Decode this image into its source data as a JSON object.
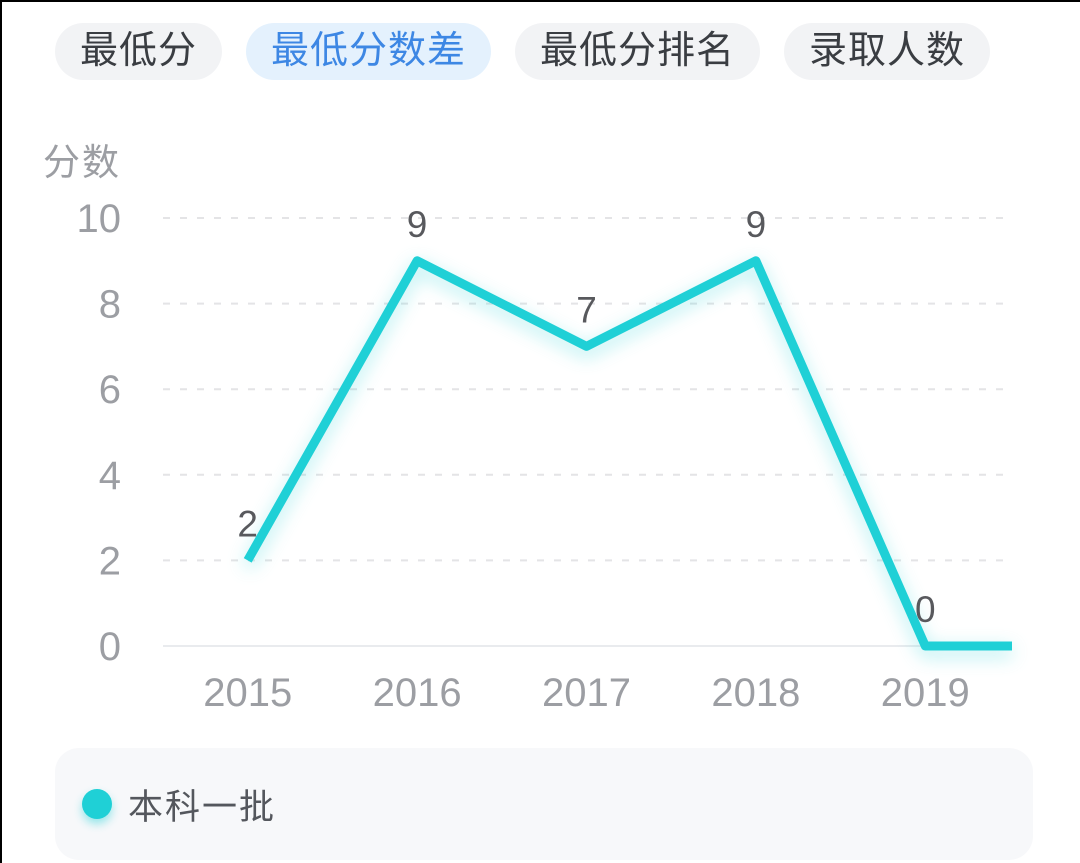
{
  "tabs": {
    "items": [
      {
        "label": "最低分",
        "active": false
      },
      {
        "label": "最低分数差",
        "active": true
      },
      {
        "label": "最低分排名",
        "active": false
      },
      {
        "label": "录取人数",
        "active": false
      }
    ],
    "active_text_color": "#3d87e4",
    "active_bg_color": "#e4f1fd",
    "inactive_text_color": "#3a3d42",
    "inactive_bg_color": "#f2f3f5"
  },
  "chart_data": {
    "type": "line",
    "title": "",
    "ylabel": "分数",
    "xlabel": "",
    "categories": [
      "2015",
      "2016",
      "2017",
      "2018",
      "2019"
    ],
    "series": [
      {
        "name": "本科一批",
        "values": [
          2,
          9,
          7,
          9,
          0
        ],
        "color": "#1fd0d6"
      }
    ],
    "yticks": [
      0,
      2,
      4,
      6,
      8,
      10
    ],
    "ylim": [
      0,
      10
    ],
    "grid": "horizontal-dashed",
    "data_labels": [
      2,
      9,
      7,
      9,
      0
    ],
    "line_extends_flat_to_right_edge": true,
    "legend_position": "bottom",
    "axis_text_color": "#9c9ea3",
    "data_label_color": "#58595d",
    "grid_color": "#e4e4e6",
    "axis_line_color": "#e9ebee"
  },
  "legend": {
    "items": [
      {
        "label": "本科一批",
        "color": "#1fd0d6"
      }
    ]
  }
}
